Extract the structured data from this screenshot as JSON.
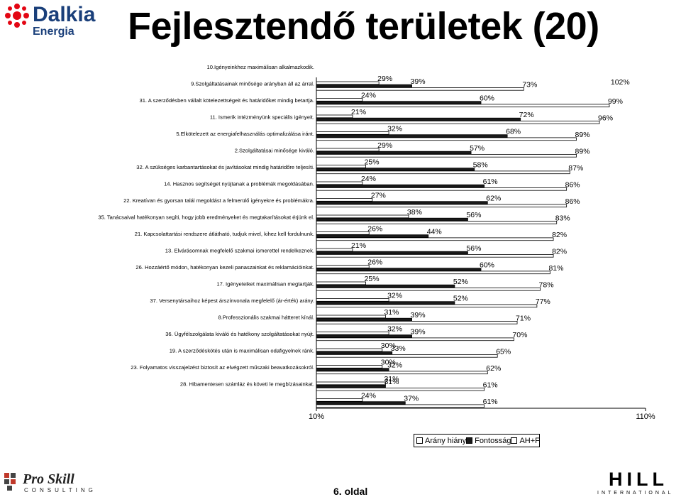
{
  "title": "Fejlesztendő területek (20)",
  "logos": {
    "dalkia": {
      "name": "Dalkia",
      "sub": "Energia"
    },
    "proskill": {
      "name": "Pro Skill",
      "sub": "CONSULTING"
    },
    "hill": {
      "name": "HILL",
      "sub": "INTERNATIONAL"
    }
  },
  "page_number": "6. oldal",
  "colors": {
    "arany_hiany": "#ffffff",
    "fontossag": "#1a1a1a",
    "ah_f": "#ffffff",
    "stroke": "#000000"
  },
  "chart_data": {
    "type": "bar",
    "orientation": "horizontal",
    "title": "",
    "xlabel": "",
    "ylabel": "",
    "xlim": [
      10,
      110
    ],
    "x_ticks": [
      "10%",
      "110%"
    ],
    "grid": false,
    "legend_position": "bottom-right",
    "categories": [
      "10.Igényeinkhez maximálisan alkalmazkodik.",
      "9.Szolgáltatásainak minősége arányban áll az árral.",
      "31. A szerződésben vállalt kötelezettségeit és határidőket mindig betartja.",
      "11. Ismerik intézményünk speciális igényeit.",
      "5.Elkötelezett az energiafelhasználás optimalizálása iránt.",
      "2.Szolgáltatásai minősége kiváló.",
      "32. A szükséges karbantartásokat és javításokat mindig határidőre teljesíti.",
      "14. Hasznos segítséget nyújtanak a problémák megoldásában.",
      "22. Kreatívan és gyorsan talál megoldást a felmerülő igényekre és problémákra.",
      "35. Tanácsaival hatékonyan segíti, hogy jobb eredményeket és megtakarításokat érjünk el.",
      "21. Kapcsolattartási rendszere átlátható, tudjuk mivel, kihez kell fordulnunk.",
      "13. Elvárásomnak megfelelő szakmai ismerettel rendelkeznek.",
      "26. Hozzáértő módon, hatékonyan kezeli panaszainkat és reklamációinkat.",
      "17. Igényeteiket maximálisan megtartják.",
      "37. Versenytársaihoz képest árszínvonala megfelelő (ár-érték) arány.",
      "8.Professzionális szakmai hátteret kínál.",
      "36. Ügyfélszolgálata kiváló és hatékony szolgáltatásokat nyújt.",
      "19. A szerződéskötés után is maximálisan odafigyelnek ránk.",
      "23. Folyamatos visszajelzést biztosít az elvégzett műszaki beavatkozásokról.",
      "28. Hibamentesen számláz és követi le megbízásainkat."
    ],
    "series": [
      {
        "name": "Arány hiány",
        "values": [
          29,
          24,
          21,
          32,
          29,
          25,
          24,
          27,
          38,
          26,
          21,
          26,
          25,
          32,
          31,
          32,
          30,
          30,
          31,
          24
        ]
      },
      {
        "name": "Fontosság",
        "values": [
          39,
          60,
          72,
          68,
          57,
          58,
          61,
          62,
          56,
          44,
          56,
          60,
          52,
          52,
          39,
          39,
          33,
          32,
          31,
          37
        ]
      },
      {
        "name": "AH+F",
        "values": [
          73,
          99,
          96,
          89,
          89,
          87,
          86,
          86,
          83,
          82,
          82,
          81,
          78,
          77,
          71,
          70,
          65,
          62,
          61,
          61
        ]
      }
    ],
    "top_label": "102%"
  }
}
